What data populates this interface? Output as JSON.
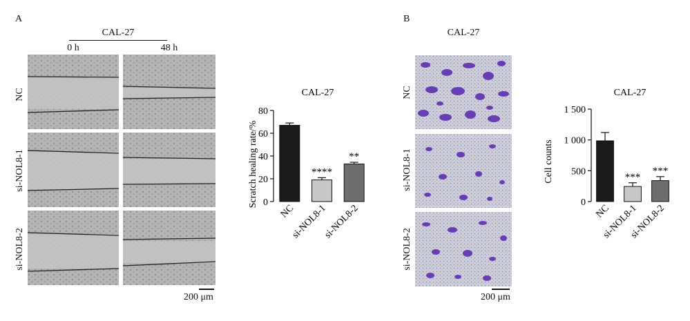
{
  "panel_a": {
    "letter": "A",
    "cell_line": "CAL-27",
    "time_0": "0 h",
    "time_48": "48 h",
    "rows": [
      "NC",
      "si-NOL8-1",
      "si-NOL8-2"
    ],
    "scale_bar": "200 μm"
  },
  "panel_b": {
    "letter": "B",
    "cell_line": "CAL-27",
    "rows": [
      "NC",
      "si-NOL8-1",
      "si-NOL8-2"
    ],
    "scale_bar": "200 μm"
  },
  "chart_data": [
    {
      "type": "bar",
      "title": "CAL-27",
      "ylabel": "Scratch healing rate/%",
      "xlabel": "",
      "categories": [
        "NC",
        "si-NOL8-1",
        "si-NOL8-2"
      ],
      "values": [
        67,
        19,
        33
      ],
      "errors": [
        2,
        2,
        1.5
      ],
      "significance": [
        "",
        "****",
        "**"
      ],
      "ylim": [
        0,
        80
      ],
      "yticks": [
        0,
        20,
        40,
        60,
        80
      ],
      "ytick_labels": [
        "0",
        "20",
        "40",
        "60",
        "80"
      ],
      "bar_colors": [
        "#1a1a1a",
        "#c8c8c8",
        "#6e6e6e"
      ]
    },
    {
      "type": "bar",
      "title": "CAL-27",
      "ylabel": "Cell counts",
      "xlabel": "",
      "categories": [
        "NC",
        "si-NOL8-1",
        "si-NOL8-2"
      ],
      "values": [
        985,
        245,
        340
      ],
      "errors": [
        135,
        60,
        65
      ],
      "significance": [
        "",
        "***",
        "***"
      ],
      "ylim": [
        0,
        1500
      ],
      "yticks": [
        0,
        500,
        1000,
        1500
      ],
      "ytick_labels": [
        "0",
        "500",
        "1 000",
        "1 500"
      ],
      "bar_colors": [
        "#1a1a1a",
        "#c8c8c8",
        "#6e6e6e"
      ]
    }
  ]
}
